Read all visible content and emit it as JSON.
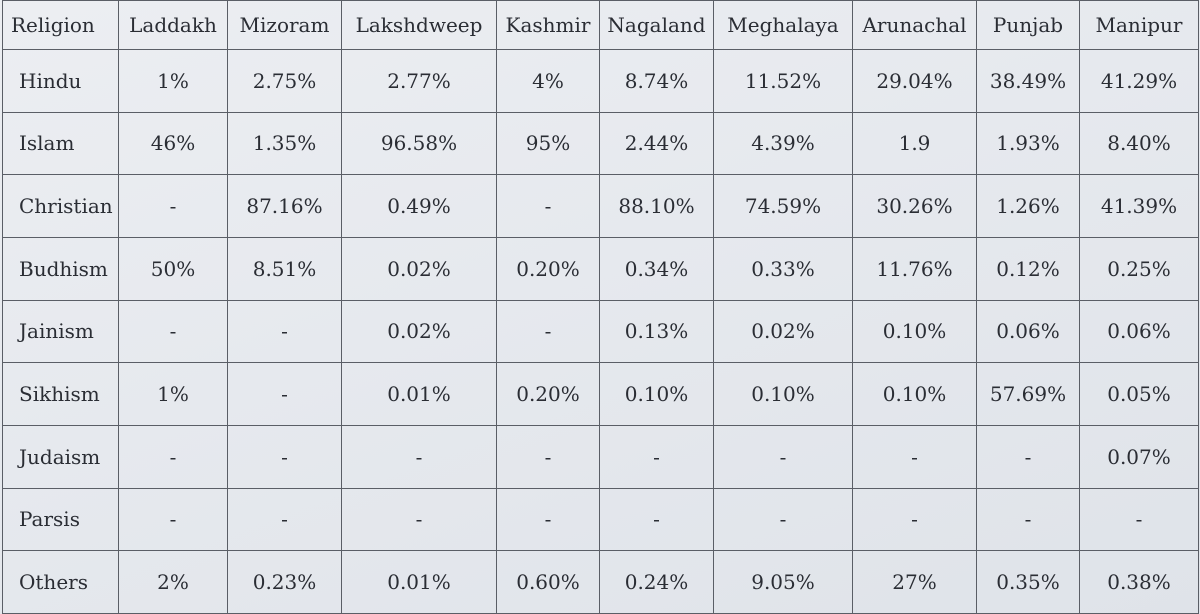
{
  "table": {
    "header": {
      "religion": "Religion",
      "states": [
        "Laddakh",
        "Mizoram",
        "Lakshdweep",
        "Kashmir",
        "Nagaland",
        "Meghalaya",
        "Arunachal",
        "Punjab",
        "Manipur"
      ]
    },
    "rows": [
      {
        "religion": "Hindu",
        "values": [
          "1%",
          "2.75%",
          "2.77%",
          "4%",
          "8.74%",
          "11.52%",
          "29.04%",
          "38.49%",
          "41.29%"
        ]
      },
      {
        "religion": "Islam",
        "values": [
          "46%",
          "1.35%",
          "96.58%",
          "95%",
          "2.44%",
          "4.39%",
          "1.9",
          "1.93%",
          "8.40%"
        ]
      },
      {
        "religion": "Christian",
        "values": [
          "-",
          "87.16%",
          "0.49%",
          "-",
          "88.10%",
          "74.59%",
          "30.26%",
          "1.26%",
          "41.39%"
        ]
      },
      {
        "religion": "Budhism",
        "values": [
          "50%",
          "8.51%",
          "0.02%",
          "0.20%",
          "0.34%",
          "0.33%",
          "11.76%",
          "0.12%",
          "0.25%"
        ]
      },
      {
        "religion": "Jainism",
        "values": [
          "-",
          "-",
          "0.02%",
          "-",
          "0.13%",
          "0.02%",
          "0.10%",
          "0.06%",
          "0.06%"
        ]
      },
      {
        "religion": "Sikhism",
        "values": [
          "1%",
          "-",
          "0.01%",
          "0.20%",
          "0.10%",
          "0.10%",
          "0.10%",
          "57.69%",
          "0.05%"
        ]
      },
      {
        "religion": "Judaism",
        "values": [
          "-",
          "-",
          "-",
          "-",
          "-",
          "-",
          "-",
          "-",
          "0.07%"
        ]
      },
      {
        "religion": "Parsis",
        "values": [
          "-",
          "-",
          "-",
          "-",
          "-",
          "-",
          "-",
          "-",
          "-"
        ]
      },
      {
        "religion": "Others",
        "values": [
          "2%",
          "0.23%",
          "0.01%",
          "0.60%",
          "0.24%",
          "9.05%",
          "27%",
          "0.35%",
          "0.38%"
        ]
      }
    ]
  }
}
